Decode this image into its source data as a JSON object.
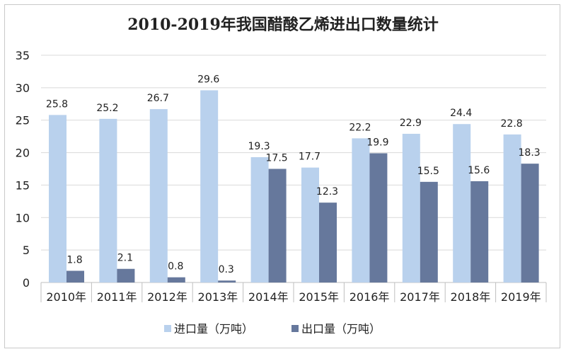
{
  "chart_data": {
    "type": "bar",
    "title": "2010-2019年我国醋酸乙烯进出口数量统计",
    "categories": [
      "2010年",
      "2011年",
      "2012年",
      "2013年",
      "2014年",
      "2015年",
      "2016年",
      "2017年",
      "2018年",
      "2019年"
    ],
    "series": [
      {
        "name": "进口量（万吨）",
        "values": [
          25.8,
          25.2,
          26.7,
          29.6,
          19.3,
          17.7,
          22.2,
          22.9,
          24.4,
          22.8
        ],
        "color": "#b9d1ed"
      },
      {
        "name": "出口量（万吨）",
        "values": [
          1.8,
          2.1,
          0.8,
          0.3,
          17.5,
          12.3,
          19.9,
          15.5,
          15.6,
          18.3
        ],
        "color": "#66789c"
      }
    ],
    "ylim": [
      0,
      35
    ],
    "yticks": [
      0,
      5,
      10,
      15,
      20,
      25,
      30,
      35
    ],
    "grid": true,
    "legend_position": "bottom"
  }
}
